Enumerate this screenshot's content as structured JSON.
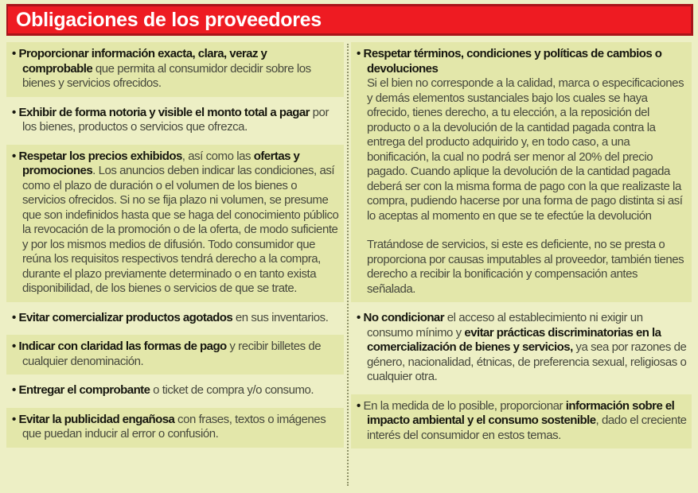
{
  "page": {
    "title": "Obligaciones de los proveedores",
    "bullet_glyph": "•",
    "colors": {
      "bg": "#edefc5",
      "band": "#e3e7aa",
      "red": "#ee1b22",
      "red-dark": "#a8141a",
      "header-text": "#ffffff",
      "text": "#46483c",
      "text-bold": "#17170f",
      "divider": "#8f9268"
    }
  },
  "columns": {
    "left": {
      "items": [
        {
          "shaded": true,
          "paragraphs": [
            {
              "segments": [
                {
                  "t": "Proporcionar información exacta, clara, veraz y comprobable",
                  "b": true
                },
                {
                  "t": " que permita al consumidor decidir sobre los bienes y servicios ofrecidos.",
                  "b": false
                }
              ]
            }
          ]
        },
        {
          "shaded": false,
          "paragraphs": [
            {
              "segments": [
                {
                  "t": "Exhibir de forma notoria y visible el monto total a pagar",
                  "b": true
                },
                {
                  "t": " por los bienes, productos o servicios que ofrezca.",
                  "b": false
                }
              ]
            }
          ]
        },
        {
          "shaded": true,
          "paragraphs": [
            {
              "segments": [
                {
                  "t": "Respetar los precios exhibidos",
                  "b": true
                },
                {
                  "t": ", así como las ",
                  "b": false
                },
                {
                  "t": "ofertas y promociones",
                  "b": true
                },
                {
                  "t": ". Los anuncios deben indicar las condiciones, así como el plazo de duración o el volumen de los bienes o servicios ofrecidos. Si no se fija plazo ni volumen, se presume que son indefinidos hasta que se haga del conocimiento público la revocación de la promoción o de la oferta, de modo suficiente y por los mismos medios de difusión. Todo consumidor que reúna los requisitos respectivos tendrá derecho a la compra, durante el plazo previamente determinado o en tanto exista disponibilidad, de los bienes o servicios de que se trate.",
                  "b": false
                }
              ]
            }
          ]
        },
        {
          "shaded": false,
          "paragraphs": [
            {
              "segments": [
                {
                  "t": "Evitar comercializar productos agotados",
                  "b": true
                },
                {
                  "t": " en sus inventarios.",
                  "b": false
                }
              ]
            }
          ]
        },
        {
          "shaded": true,
          "paragraphs": [
            {
              "segments": [
                {
                  "t": "Indicar con claridad las formas de pago",
                  "b": true
                },
                {
                  "t": " y recibir billetes de cualquier denominación.",
                  "b": false
                }
              ]
            }
          ]
        },
        {
          "shaded": false,
          "paragraphs": [
            {
              "segments": [
                {
                  "t": "Entregar el comprobante",
                  "b": true
                },
                {
                  "t": " o ticket de compra y/o consumo.",
                  "b": false
                }
              ]
            }
          ]
        },
        {
          "shaded": true,
          "paragraphs": [
            {
              "segments": [
                {
                  "t": "Evitar la publicidad engañosa",
                  "b": true
                },
                {
                  "t": " con frases, textos o imágenes que puedan inducir al error o confusión.",
                  "b": false
                }
              ]
            }
          ]
        }
      ]
    },
    "right": {
      "items": [
        {
          "shaded": true,
          "paragraphs": [
            {
              "segments": [
                {
                  "t": "Respetar términos, condiciones y políticas de cambios o devoluciones",
                  "b": true
                }
              ]
            },
            {
              "segments": [
                {
                  "t": "Si el bien no corresponde a la calidad, marca o especificaciones y demás elementos sustanciales bajo los cuales se haya ofrecido, tienes derecho, a tu elección, a la reposición del producto o a la devolución de la cantidad pagada contra la entrega del producto adquirido y, en todo caso, a una bonificación, la cual no podrá ser menor al 20% del precio pagado. Cuando aplique la devolución de la cantidad pagada deberá ser con la misma forma de pago con la que realizaste la compra, pudiendo hacerse por una forma de pago distinta si así lo aceptas al momento en que se te efectúe la devolución",
                  "b": false
                }
              ]
            },
            {
              "gap": true,
              "segments": [
                {
                  "t": "Tratándose de servicios, si este es deficiente, no se presta o proporciona por causas imputables al proveedor, también tienes derecho a recibir la bonificación y compensación antes señalada.",
                  "b": false
                }
              ]
            }
          ]
        },
        {
          "shaded": false,
          "paragraphs": [
            {
              "segments": [
                {
                  "t": "No condicionar",
                  "b": true
                },
                {
                  "t": " el acceso al establecimiento ni exigir un consumo mínimo y ",
                  "b": false
                },
                {
                  "t": "evitar prácticas discriminatorias en la comercialización de bienes y servicios,",
                  "b": true
                },
                {
                  "t": " ya sea por razones de género, nacionalidad, étnicas, de preferencia sexual, religiosas o cualquier otra.",
                  "b": false
                }
              ]
            }
          ]
        },
        {
          "shaded": true,
          "paragraphs": [
            {
              "segments": [
                {
                  "t": "En la medida de lo posible, proporcionar ",
                  "b": false
                },
                {
                  "t": "información sobre el impacto ambiental y el consumo sostenible",
                  "b": true
                },
                {
                  "t": ", dado el creciente interés del consumidor en estos temas.",
                  "b": false
                }
              ]
            }
          ]
        }
      ]
    }
  }
}
